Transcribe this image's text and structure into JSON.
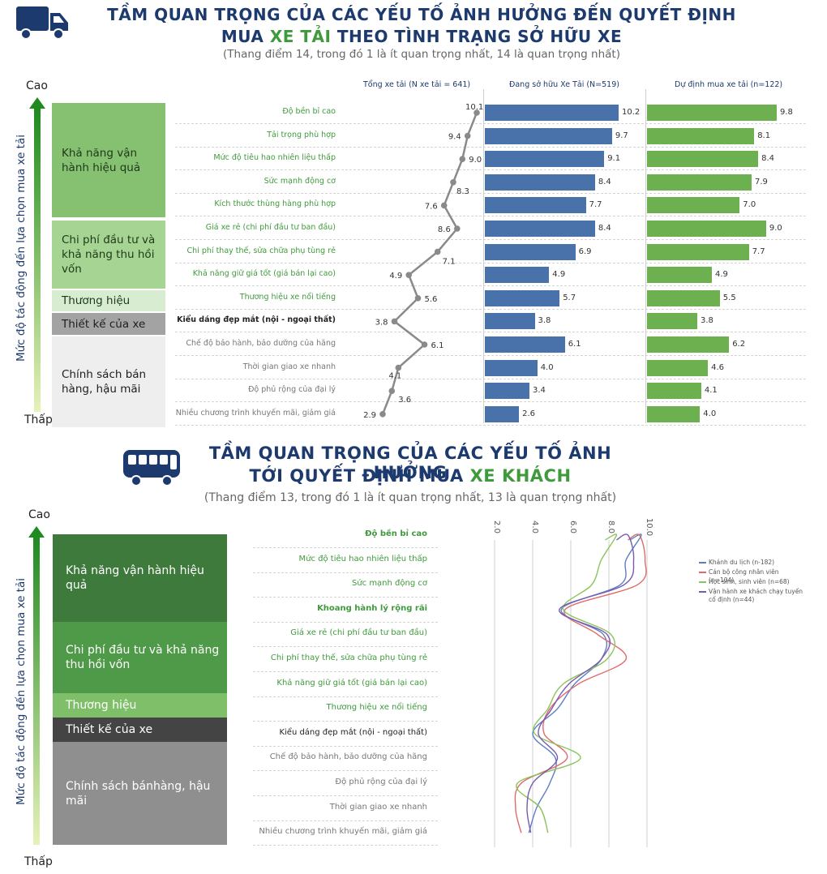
{
  "truck": {
    "title_line1": "TẦM QUAN TRỌNG CỦA CÁC YẾU TỐ ẢNH HƯỞNG ĐẾN QUYẾT ĐỊNH",
    "title_pre": "MUA ",
    "title_highlight": "XE TẢI",
    "title_post": " THEO TÌNH TRẠNG SỞ HỮU XE",
    "subtitle": "(Thang điểm 14, trong đó 1 là ít quan trọng nhất, 14 là quan trọng nhất)",
    "high_label": "Cao",
    "low_label": "Thấp",
    "axis_label": "Mức độ tác động đến lựa chọn mua xe tải",
    "groups": [
      {
        "label": "Khả năng vận hành hiệu quả",
        "color": "#86c071",
        "text_color": "#1e3a1a"
      },
      {
        "label": "Chi phí đầu tư và khả năng thu hồi vốn",
        "color": "#a6d492",
        "text_color": "#1e3a1a"
      },
      {
        "label": "Thương hiệu",
        "color": "#d7ecd0",
        "text_color": "#1e3a1a"
      },
      {
        "label": "Thiết kế của xe",
        "color": "#a3a3a3",
        "text_color": "#1e1e1e"
      },
      {
        "label": "Chính sách bán hàng, hậu mãi",
        "color": "#eeeeee",
        "text_color": "#1e1e1e"
      }
    ],
    "icon": "truck-icon"
  },
  "bus": {
    "title_line1": "TẦM QUAN TRỌNG CỦA CÁC YẾU TỐ ẢNH HƯỞNG",
    "title_pre": "TỚI QUYẾT ĐỊNH MUA ",
    "title_highlight": "XE KHÁCH",
    "subtitle": "(Thang điểm 13, trong đó 1 là ít quan trọng nhất, 13 là quan trọng nhất)",
    "high_label": "Cao",
    "low_label": "Thấp",
    "axis_label": "Mức độ tác động đến lựa chọn mua xe tải",
    "groups": [
      {
        "label": "Khả năng vận hành hiệu quả",
        "color": "#3e7a3b",
        "text_color": "#ffffff"
      },
      {
        "label": "Chi phí đầu tư và khả năng thu hồi vốn",
        "color": "#4f9a48",
        "text_color": "#ffffff"
      },
      {
        "label": "Thương hiệu",
        "color": "#7fbf6a",
        "text_color": "#ffffff"
      },
      {
        "label": "Thiết kế của xe",
        "color": "#444444",
        "text_color": "#ffffff"
      },
      {
        "label": "Chính sách bánhàng, hậu mãi",
        "color": "#8f8f8f",
        "text_color": "#ffffff"
      }
    ],
    "icon": "bus-icon"
  },
  "colors": {
    "navy": "#1c3a6e",
    "green": "#3f9a3b",
    "blue_bar": "#4a72aa",
    "green_bar": "#6cb04f",
    "grey_line": "#8a8a8a"
  },
  "chart_data": [
    {
      "type": "bar",
      "categories": [
        "Độ bền bỉ cao",
        "Tải trọng phù hợp",
        "Mức độ tiêu hao nhiên liệu thấp",
        "Sức mạnh động cơ",
        "Kích thước thùng hàng phù hợp",
        "Giá xe rẻ (chi phí đầu tư ban đầu)",
        "Chi phí thay thế, sửa chữa phụ tùng rẻ",
        "Khả năng giữ giá tốt (giá bán lại cao)",
        "Thương hiệu xe nổi tiếng",
        "Kiểu dáng đẹp mắt (nội - ngoại thất)",
        "Chế độ bảo hành, bảo dưỡng của hãng",
        "Thời gian giao xe nhanh",
        "Độ phủ rộng của đại lý",
        "Nhiều chương trình khuyến mãi, giảm giá"
      ],
      "category_groups": [
        0,
        0,
        0,
        0,
        0,
        1,
        1,
        1,
        2,
        3,
        4,
        4,
        4,
        4
      ],
      "series": [
        {
          "name": "Tổng xe tải (N xe tải = 641)",
          "display": "line",
          "values": [
            10.1,
            9.4,
            9.0,
            8.3,
            7.6,
            8.6,
            7.1,
            4.9,
            5.6,
            3.8,
            6.1,
            4.1,
            3.6,
            2.9
          ],
          "labels": [
            "10.1",
            "9.4",
            "9.0",
            "8.3",
            "7.6",
            "8.6",
            "7.1",
            "4.9",
            "5.6",
            "3.8",
            "6.1",
            "4.1",
            "3.6",
            "2.9"
          ]
        },
        {
          "name": "Đang sở hữu Xe Tải (N=519)",
          "display": "bar",
          "values": [
            10.2,
            9.7,
            9.1,
            8.4,
            7.7,
            8.4,
            6.9,
            4.9,
            5.7,
            3.8,
            6.1,
            4.0,
            3.4,
            2.6
          ],
          "labels": [
            "10.2",
            "9.7",
            "9.1",
            "8.4",
            "7.7",
            "8.4",
            "6.9",
            "4.9",
            "5.7",
            "3.8",
            "6.1",
            "4.0",
            "3.4",
            "2.6"
          ]
        },
        {
          "name": "Dự định mua xe tải (n=122)",
          "display": "bar",
          "values": [
            9.8,
            8.1,
            8.4,
            7.9,
            7.0,
            9.0,
            7.7,
            4.9,
            5.5,
            3.8,
            6.2,
            4.6,
            4.1,
            4.0
          ],
          "labels": [
            "9.8",
            "8.1",
            "8.4",
            "7.9",
            "7.0",
            "9.0",
            "7.7",
            "4.9",
            "5.5",
            "3.8",
            "6.2",
            "4.6",
            "4.1",
            "4.0"
          ]
        }
      ]
    },
    {
      "type": "line",
      "categories": [
        "Độ bền bỉ cao",
        "Mức độ tiêu hao nhiên liệu thấp",
        "Sức mạnh động cơ",
        "Khoang hành lý rộng rãi",
        "Giá xe rẻ (chi phí đầu tư ban đầu)",
        "Chi phí thay thế, sửa chữa phụ tùng rẻ",
        "Khả năng giữ giá tốt (giá bán lại cao)",
        "Thương hiệu xe nổi tiếng",
        "Kiểu dáng đẹp mắt (nội - ngoại thất)",
        "Chế độ bảo hành, bảo dưỡng của hãng",
        "Độ phủ rộng của đại lý",
        "Thời gian giao xe nhanh",
        "Nhiều chương trình khuyến mãi, giảm giá"
      ],
      "category_groups": [
        0,
        0,
        0,
        0,
        1,
        1,
        1,
        2,
        3,
        4,
        4,
        4,
        4
      ],
      "xticks": [
        "2.0",
        "4.0",
        "6.0",
        "8.0",
        "10.0"
      ],
      "xlim": [
        2.0,
        10.0
      ],
      "series": [
        {
          "name": "Khánh du lịch (n-182)",
          "color": "#5b7fc4",
          "values": [
            9.7,
            8.9,
            8.6,
            5.5,
            7.7,
            7.6,
            6.2,
            5.3,
            4.0,
            5.2,
            4.9,
            4.2,
            3.8
          ]
        },
        {
          "name": "Cán bộ công nhân viên (n=104)",
          "color": "#e06a6a",
          "values": [
            9.6,
            9.9,
            9.5,
            5.7,
            7.4,
            8.9,
            6.4,
            4.9,
            4.6,
            5.8,
            3.4,
            3.1,
            3.4
          ]
        },
        {
          "name": "Học sinh, sinh viên (n=68)",
          "color": "#8bc45c",
          "values": [
            8.4,
            7.6,
            7.1,
            5.6,
            8.1,
            7.9,
            5.6,
            4.8,
            4.1,
            6.5,
            3.2,
            4.4,
            4.8
          ]
        },
        {
          "name": "Vận hành xe khách chạy tuyến cố định (n=44)",
          "color": "#7a5ab0",
          "values": [
            9.0,
            9.3,
            8.8,
            5.4,
            7.9,
            7.6,
            5.9,
            5.0,
            4.3,
            5.3,
            4.0,
            3.7,
            3.9
          ]
        }
      ]
    }
  ]
}
